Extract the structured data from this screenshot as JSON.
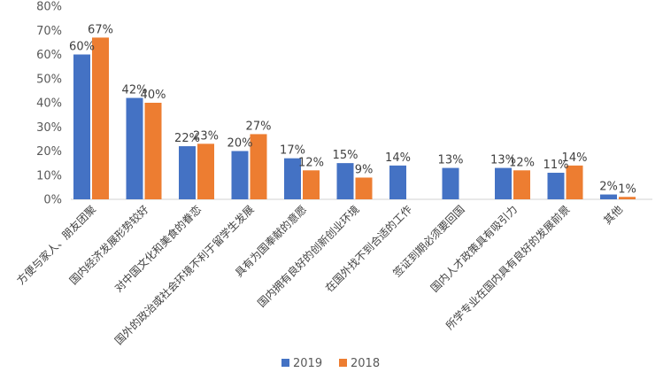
{
  "chart_data": {
    "type": "bar",
    "title": "",
    "xlabel": "",
    "ylabel": "",
    "ylim": [
      0,
      80
    ],
    "yticks": [
      "0%",
      "10%",
      "20%",
      "30%",
      "40%",
      "50%",
      "60%",
      "70%",
      "80%"
    ],
    "grid": false,
    "legend_position": "bottom",
    "categories": [
      "方便与家人、朋友团聚",
      "国内经济发展形势较好",
      "对中国文化和美食的眷恋",
      "国外的政治或社会环境不利于留学生发展",
      "具有为国奉献的意愿",
      "国内拥有良好的创新创业环境",
      "在国外找不到合适的工作",
      "签证到期必须要回国",
      "国内人才政策具有吸引力",
      "所学专业在国内具有良好的发展前景",
      "其他"
    ],
    "series": [
      {
        "name": "2019",
        "color": "#4472C4",
        "values": [
          60,
          42,
          22,
          20,
          17,
          15,
          14,
          13,
          13,
          11,
          2
        ],
        "labels": [
          "60%",
          "42%",
          "22%",
          "20%",
          "17%",
          "15%",
          "14%",
          "13%",
          "13%",
          "11%",
          "2%"
        ]
      },
      {
        "name": "2018",
        "color": "#ED7D31",
        "values": [
          67,
          40,
          23,
          27,
          12,
          9,
          null,
          null,
          12,
          14,
          1
        ],
        "labels": [
          "67%",
          "40%",
          "23%",
          "27%",
          "12%",
          "9%",
          null,
          null,
          "12%",
          "14%",
          "1%"
        ]
      }
    ]
  }
}
